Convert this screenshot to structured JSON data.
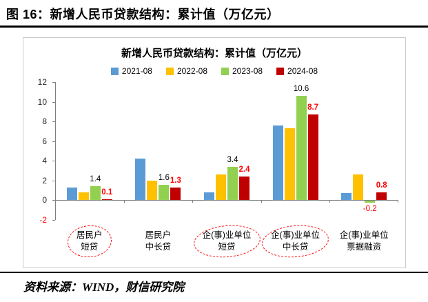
{
  "figure": {
    "title": "图 16：新增人民币贷款结构：累计值（万亿元）"
  },
  "source": {
    "text": "资料来源：WIND，财信研究院"
  },
  "chart_data": {
    "type": "bar",
    "title": "新增人民币贷款结构：累计值（万亿元）",
    "categories": [
      "居民户短贷",
      "居民户中长贷",
      "企(事)业单位短贷",
      "企(事)业单位中长贷",
      "企(事)业单位票据融资"
    ],
    "category_display": [
      [
        "居民户",
        "短贷"
      ],
      [
        "居民户",
        "中长贷"
      ],
      [
        "企(事)业单位",
        "短贷"
      ],
      [
        "企(事)业单位",
        "中长贷"
      ],
      [
        "企(事)业单位",
        "票据融资"
      ]
    ],
    "circled_categories": [
      0,
      2,
      3
    ],
    "series": [
      {
        "name": "2021-08",
        "color": "#5B9BD5",
        "values": [
          1.3,
          4.2,
          0.8,
          7.6,
          0.7
        ]
      },
      {
        "name": "2022-08",
        "color": "#FFC000",
        "values": [
          0.8,
          2.0,
          2.6,
          7.3,
          2.6
        ]
      },
      {
        "name": "2023-08",
        "color": "#92D050",
        "values": [
          1.4,
          1.6,
          3.4,
          10.6,
          -0.2
        ],
        "labels": [
          "1.4",
          "1.6",
          "3.4",
          "10.6",
          "-0.2"
        ],
        "label_colors": [
          "#000000",
          "#000000",
          "#000000",
          "#000000",
          "#FF0000"
        ],
        "label_bold": false
      },
      {
        "name": "2024-08",
        "color": "#C00000",
        "values": [
          0.1,
          1.3,
          2.4,
          8.7,
          0.8
        ],
        "labels": [
          "0.1",
          "1.3",
          "2.4",
          "8.7",
          "0.8"
        ],
        "label_colors": [
          "#FF0000",
          "#FF0000",
          "#FF0000",
          "#FF0000",
          "#FF0000"
        ],
        "label_bold": true
      }
    ],
    "ylim": [
      -2,
      12
    ],
    "yticks": [
      12,
      10,
      8,
      6,
      4,
      2,
      0,
      -2
    ],
    "ytick_colors": {
      "-2": "#FF0000"
    },
    "legend_position": "top",
    "grid": false,
    "axis_color": "#7f7f7f",
    "xlabel": "",
    "ylabel": ""
  }
}
